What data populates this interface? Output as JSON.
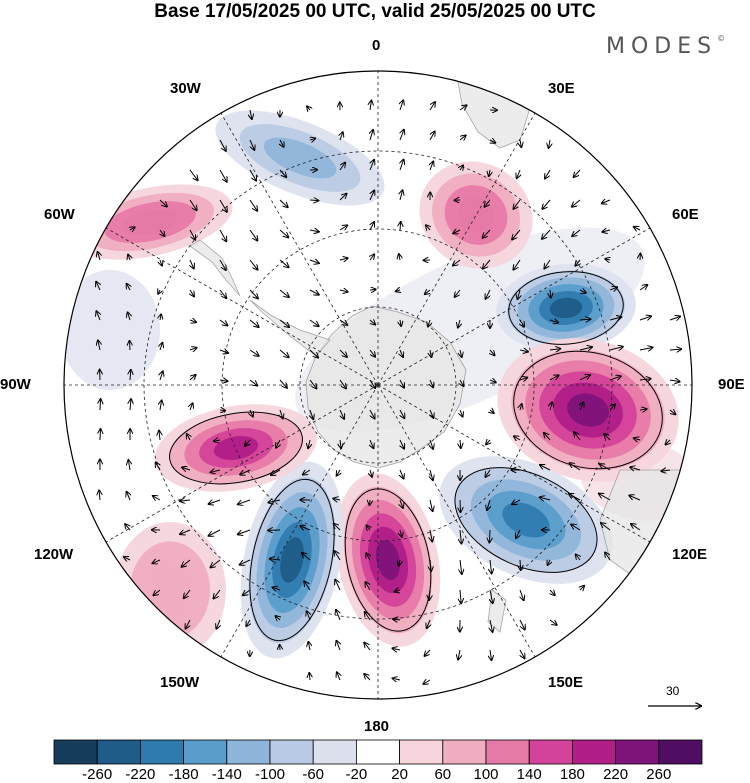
{
  "title": "Base 17/05/2025 00 UTC, valid 25/05/2025 00 UTC",
  "brand": "MODES",
  "brand_mark": "©",
  "longitude_labels": {
    "lon_0": "0",
    "lon_30e": "30E",
    "lon_60e": "60E",
    "lon_90e": "90E",
    "lon_120e": "120E",
    "lon_150e": "150E",
    "lon_180": "180",
    "lon_150w": "150W",
    "lon_120w": "120W",
    "lon_90w": "90W",
    "lon_60w": "60W",
    "lon_30w": "30W"
  },
  "reference_vector": {
    "label": "30"
  },
  "colorbar": {
    "ticks": [
      "-260",
      "-220",
      "-180",
      "-140",
      "-100",
      "-60",
      "-20",
      "20",
      "60",
      "100",
      "140",
      "180",
      "220",
      "260"
    ],
    "colors": [
      "#173d5c",
      "#1f5c88",
      "#2f7bb0",
      "#5a9ccb",
      "#8fb5da",
      "#b9cae4",
      "#dde1ee",
      "#ffffff",
      "#f7d5dc",
      "#f0aec0",
      "#e67aa6",
      "#d4439a",
      "#b01e88",
      "#7e137a",
      "#4f0e62"
    ]
  },
  "anomaly_centers": [
    {
      "name": "low-south-africa",
      "value": -220
    },
    {
      "name": "high-indian-ocean",
      "value": 240
    },
    {
      "name": "low-south-australia",
      "value": -200
    },
    {
      "name": "high-ross-sea",
      "value": 260
    },
    {
      "name": "low-amundsen",
      "value": -240
    },
    {
      "name": "high-bellingshausen",
      "value": 200
    },
    {
      "name": "low-south-atlantic",
      "value": -100
    },
    {
      "name": "high-south-atlantic",
      "value": 140
    },
    {
      "name": "high-weddell",
      "value": 140
    },
    {
      "name": "high-pacific-east",
      "value": 100
    }
  ]
}
